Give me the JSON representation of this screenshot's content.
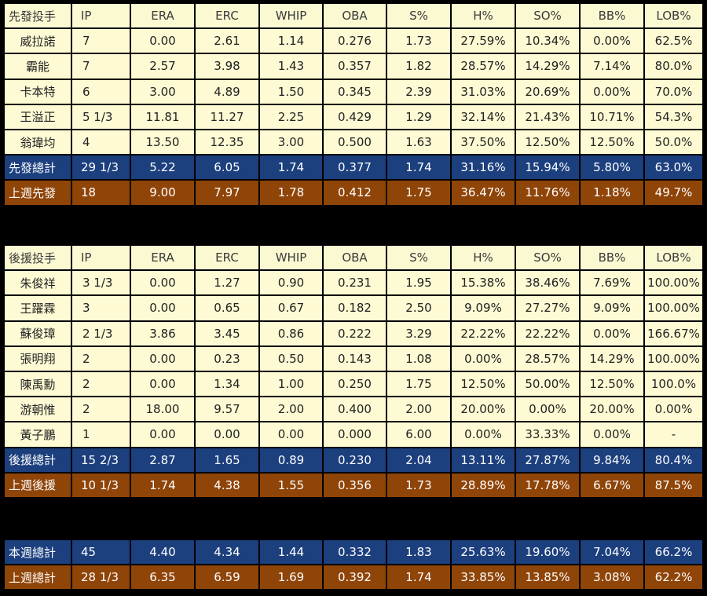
{
  "columns": [
    "IP",
    "ERA",
    "ERC",
    "WHIP",
    "OBA",
    "S%",
    "H%",
    "SO%",
    "BB%",
    "LOB%"
  ],
  "starters": {
    "header_label": "先發投手",
    "rows": [
      {
        "name": "威拉諾",
        "values": [
          "7",
          "0.00",
          "2.61",
          "1.14",
          "0.276",
          "1.73",
          "27.59%",
          "10.34%",
          "0.00%",
          "62.5%"
        ]
      },
      {
        "name": "霸能",
        "values": [
          "7",
          "2.57",
          "3.98",
          "1.43",
          "0.357",
          "1.82",
          "28.57%",
          "14.29%",
          "7.14%",
          "80.0%"
        ]
      },
      {
        "name": "卡本特",
        "values": [
          "6",
          "3.00",
          "4.89",
          "1.50",
          "0.345",
          "2.39",
          "31.03%",
          "20.69%",
          "0.00%",
          "70.0%"
        ]
      },
      {
        "name": "王溢正",
        "values": [
          "5 1/3",
          "11.81",
          "11.27",
          "2.25",
          "0.429",
          "1.29",
          "32.14%",
          "21.43%",
          "10.71%",
          "54.3%"
        ]
      },
      {
        "name": "翁瑋均",
        "values": [
          "4",
          "13.50",
          "12.35",
          "3.00",
          "0.500",
          "1.63",
          "37.50%",
          "12.50%",
          "12.50%",
          "50.0%"
        ]
      }
    ],
    "total": {
      "name": "先發總計",
      "values": [
        "29 1/3",
        "5.22",
        "6.05",
        "1.74",
        "0.377",
        "1.74",
        "31.16%",
        "15.94%",
        "5.80%",
        "63.0%"
      ]
    },
    "last_week": {
      "name": "上週先發",
      "values": [
        "18",
        "9.00",
        "7.97",
        "1.78",
        "0.412",
        "1.75",
        "36.47%",
        "11.76%",
        "1.18%",
        "49.7%"
      ]
    }
  },
  "relievers": {
    "header_label": "後援投手",
    "rows": [
      {
        "name": "朱俊祥",
        "values": [
          "3 1/3",
          "0.00",
          "1.27",
          "0.90",
          "0.231",
          "1.95",
          "15.38%",
          "38.46%",
          "7.69%",
          "100.00%"
        ]
      },
      {
        "name": "王躍霖",
        "values": [
          "3",
          "0.00",
          "0.65",
          "0.67",
          "0.182",
          "2.50",
          "9.09%",
          "27.27%",
          "9.09%",
          "100.00%"
        ]
      },
      {
        "name": "蘇俊璋",
        "values": [
          "2 1/3",
          "3.86",
          "3.45",
          "0.86",
          "0.222",
          "3.29",
          "22.22%",
          "22.22%",
          "0.00%",
          "166.67%"
        ]
      },
      {
        "name": "張明翔",
        "values": [
          "2",
          "0.00",
          "0.23",
          "0.50",
          "0.143",
          "1.08",
          "0.00%",
          "28.57%",
          "14.29%",
          "100.00%"
        ]
      },
      {
        "name": "陳禹勳",
        "values": [
          "2",
          "0.00",
          "1.34",
          "1.00",
          "0.250",
          "1.75",
          "12.50%",
          "50.00%",
          "12.50%",
          "100.0%"
        ]
      },
      {
        "name": "游朝惟",
        "values": [
          "2",
          "18.00",
          "9.57",
          "2.00",
          "0.400",
          "2.00",
          "20.00%",
          "0.00%",
          "20.00%",
          "0.00%"
        ]
      },
      {
        "name": "黃子鵬",
        "values": [
          "1",
          "0.00",
          "0.00",
          "0.00",
          "0.000",
          "6.00",
          "0.00%",
          "33.33%",
          "0.00%",
          "-"
        ]
      }
    ],
    "total": {
      "name": "後援總計",
      "values": [
        "15 2/3",
        "2.87",
        "1.65",
        "0.89",
        "0.230",
        "2.04",
        "13.11%",
        "27.87%",
        "9.84%",
        "80.4%"
      ]
    },
    "last_week": {
      "name": "上週後援",
      "values": [
        "10 1/3",
        "1.74",
        "4.38",
        "1.55",
        "0.356",
        "1.73",
        "28.89%",
        "17.78%",
        "6.67%",
        "87.5%"
      ]
    }
  },
  "overall": {
    "this_week": {
      "name": "本週總計",
      "values": [
        "45",
        "4.40",
        "4.34",
        "1.44",
        "0.332",
        "1.83",
        "25.63%",
        "19.60%",
        "7.04%",
        "66.2%"
      ]
    },
    "last_week": {
      "name": "上週總計",
      "values": [
        "28 1/3",
        "6.35",
        "6.59",
        "1.69",
        "0.392",
        "1.74",
        "33.85%",
        "13.85%",
        "3.08%",
        "62.2%"
      ]
    }
  },
  "colors": {
    "header_bg": "#fbf9d2",
    "row_bg": "#fefbd4",
    "total_bg": "#1c3f7e",
    "last_week_bg": "#8f4408",
    "page_bg": "#000000"
  }
}
